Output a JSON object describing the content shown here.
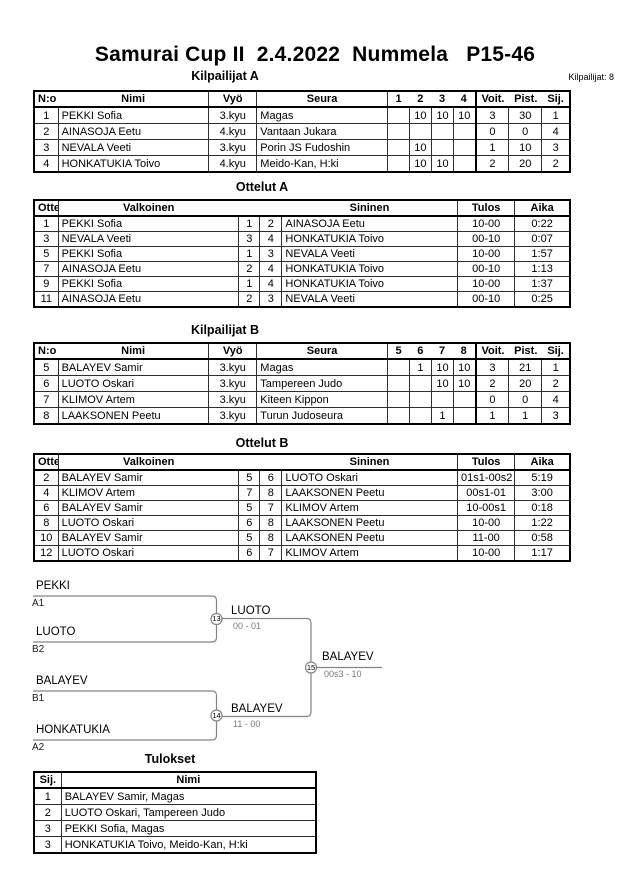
{
  "page": {
    "title": "Samurai Cup II  2.4.2022  Nummela   P15-46",
    "competitors_label": "Kilpailijat: 8"
  },
  "pool_a": {
    "title": "Kilpailijat A",
    "header": {
      "no": "N:o",
      "name": "Nimi",
      "belt": "Vyö",
      "club": "Seura",
      "rounds": [
        "1",
        "2",
        "3",
        "4"
      ],
      "wins": "Voit.",
      "points": "Pist.",
      "place": "Sij."
    },
    "rows": [
      [
        "1",
        "PEKKI Sofia",
        "3.kyu",
        "Magas",
        "",
        "10",
        "10",
        "10",
        "3",
        "30",
        "1"
      ],
      [
        "2",
        "AINASOJA Eetu",
        "4.kyu",
        "Vantaan Jukara",
        "",
        "",
        "",
        "",
        "0",
        "0",
        "4"
      ],
      [
        "3",
        "NEVALA Veeti",
        "3.kyu",
        "Porin JS Fudoshin",
        "",
        "10",
        "",
        "",
        "1",
        "10",
        "3"
      ],
      [
        "4",
        "HONKATUKIA Toivo",
        "4.kyu",
        "Meido-Kan, H:ki",
        "",
        "10",
        "10",
        "",
        "2",
        "20",
        "2"
      ]
    ]
  },
  "matches_a": {
    "title": "Ottelut A",
    "header": {
      "match": "Ottelu",
      "white": "Valkoinen",
      "blue": "Sininen",
      "result": "Tulos",
      "time": "Aika"
    },
    "rows": [
      [
        "1",
        "PEKKI Sofia",
        "1",
        "2",
        "AINASOJA Eetu",
        "10-00",
        "0:22"
      ],
      [
        "3",
        "NEVALA Veeti",
        "3",
        "4",
        "HONKATUKIA Toivo",
        "00-10",
        "0:07"
      ],
      [
        "5",
        "PEKKI Sofia",
        "1",
        "3",
        "NEVALA Veeti",
        "10-00",
        "1:57"
      ],
      [
        "7",
        "AINASOJA Eetu",
        "2",
        "4",
        "HONKATUKIA Toivo",
        "00-10",
        "1:13"
      ],
      [
        "9",
        "PEKKI Sofia",
        "1",
        "4",
        "HONKATUKIA Toivo",
        "10-00",
        "1:37"
      ],
      [
        "11",
        "AINASOJA Eetu",
        "2",
        "3",
        "NEVALA Veeti",
        "00-10",
        "0:25"
      ]
    ]
  },
  "pool_b": {
    "title": "Kilpailijat B",
    "header": {
      "no": "N:o",
      "name": "Nimi",
      "belt": "Vyö",
      "club": "Seura",
      "rounds": [
        "5",
        "6",
        "7",
        "8"
      ],
      "wins": "Voit.",
      "points": "Pist.",
      "place": "Sij."
    },
    "rows": [
      [
        "5",
        "BALAYEV Samir",
        "3.kyu",
        "Magas",
        "",
        "1",
        "10",
        "10",
        "3",
        "21",
        "1"
      ],
      [
        "6",
        "LUOTO Oskari",
        "3.kyu",
        "Tampereen Judo",
        "",
        "",
        "10",
        "10",
        "2",
        "20",
        "2"
      ],
      [
        "7",
        "KLIMOV Artem",
        "3.kyu",
        "Kiteen Kippon",
        "",
        "",
        "",
        "",
        "0",
        "0",
        "4"
      ],
      [
        "8",
        "LAAKSONEN Peetu",
        "3.kyu",
        "Turun Judoseura",
        "",
        "",
        "1",
        "",
        "1",
        "1",
        "3"
      ]
    ]
  },
  "matches_b": {
    "title": "Ottelut B",
    "header": {
      "match": "Ottelu",
      "white": "Valkoinen",
      "blue": "Sininen",
      "result": "Tulos",
      "time": "Aika"
    },
    "rows": [
      [
        "2",
        "BALAYEV Samir",
        "5",
        "6",
        "LUOTO Oskari",
        "01s1-00s2",
        "5:19"
      ],
      [
        "4",
        "KLIMOV Artem",
        "7",
        "8",
        "LAAKSONEN Peetu",
        "00s1-01",
        "3:00"
      ],
      [
        "6",
        "BALAYEV Samir",
        "5",
        "7",
        "KLIMOV Artem",
        "10-00s1",
        "0:18"
      ],
      [
        "8",
        "LUOTO Oskari",
        "6",
        "8",
        "LAAKSONEN Peetu",
        "10-00",
        "1:22"
      ],
      [
        "10",
        "BALAYEV Samir",
        "5",
        "8",
        "LAAKSONEN Peetu",
        "11-00",
        "0:58"
      ],
      [
        "12",
        "LUOTO Oskari",
        "6",
        "7",
        "KLIMOV Artem",
        "10-00",
        "1:17"
      ]
    ]
  },
  "bracket": {
    "semifinal_1": {
      "match_no": "13",
      "top": "PEKKI",
      "top_seed": "A1",
      "bottom": "LUOTO",
      "bottom_seed": "B2",
      "winner": "LUOTO",
      "score": "00 - 01"
    },
    "semifinal_2": {
      "match_no": "14",
      "top": "BALAYEV",
      "top_seed": "B1",
      "bottom": "HONKATUKIA",
      "bottom_seed": "A2",
      "winner": "BALAYEV",
      "score": "11 - 00"
    },
    "final": {
      "match_no": "15",
      "winner": "BALAYEV",
      "score": "00s3 - 10"
    }
  },
  "results": {
    "title": "Tulokset",
    "header": {
      "place": "Sij.",
      "name": "Nimi"
    },
    "rows": [
      [
        "1",
        "BALAYEV Samir, Magas"
      ],
      [
        "2",
        "LUOTO Oskari, Tampereen Judo"
      ],
      [
        "3",
        "PEKKI Sofia, Magas"
      ],
      [
        "3",
        "HONKATUKIA Toivo, Meido-Kan, H:ki"
      ]
    ]
  }
}
